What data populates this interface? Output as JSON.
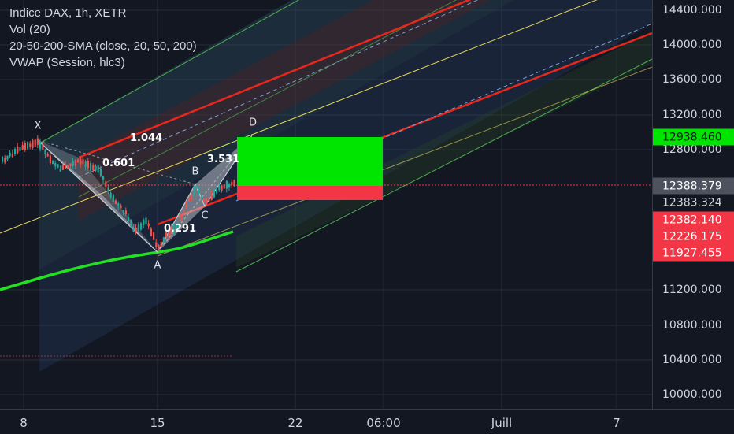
{
  "legend": {
    "symbol": "Indice DAX, 1h, XETR",
    "volume": "Vol (20)",
    "sma": "20-50-200-SMA (close, 20, 50, 200)",
    "vwap": "VWAP (Session, hlc3)"
  },
  "price_scale": {
    "ticks": [
      "14400.000",
      "14000.000",
      "13600.000",
      "13200.000",
      "12800.000",
      "11200.000",
      "10800.000",
      "10400.000",
      "10000.000"
    ],
    "tags": [
      {
        "label": "12938.460",
        "bg": "#00e500",
        "fg": "#131722"
      },
      {
        "label": "12388.379",
        "bg": "#4c525e",
        "fg": "#ffffff"
      },
      {
        "label": "12383.324",
        "bg": "#131722",
        "fg": "#d1d4dc"
      },
      {
        "label": "12382.140",
        "bg": "#f23645",
        "fg": "#ffffff"
      },
      {
        "label": "12226.175",
        "bg": "#f23645",
        "fg": "#ffffff"
      },
      {
        "label": "11927.455",
        "bg": "#f23645",
        "fg": "#ffffff"
      }
    ]
  },
  "time_scale": {
    "ticks": [
      "8",
      "15",
      "22",
      "06:00",
      "Juill",
      "7"
    ]
  },
  "pattern": {
    "points": [
      "X",
      "A",
      "B",
      "C",
      "D"
    ],
    "ratios": [
      "1.044",
      "0.601",
      "3.531",
      "0.291"
    ]
  },
  "colors": {
    "background": "#131722",
    "grid": "#2a2e39",
    "channel_red": "#e8281d",
    "channel_green": "#4caf50",
    "channel_yellow": "#e6d95c",
    "target_green": "#00e500",
    "stop_red": "#f23645",
    "vwap": "#22e022"
  },
  "icons": {}
}
